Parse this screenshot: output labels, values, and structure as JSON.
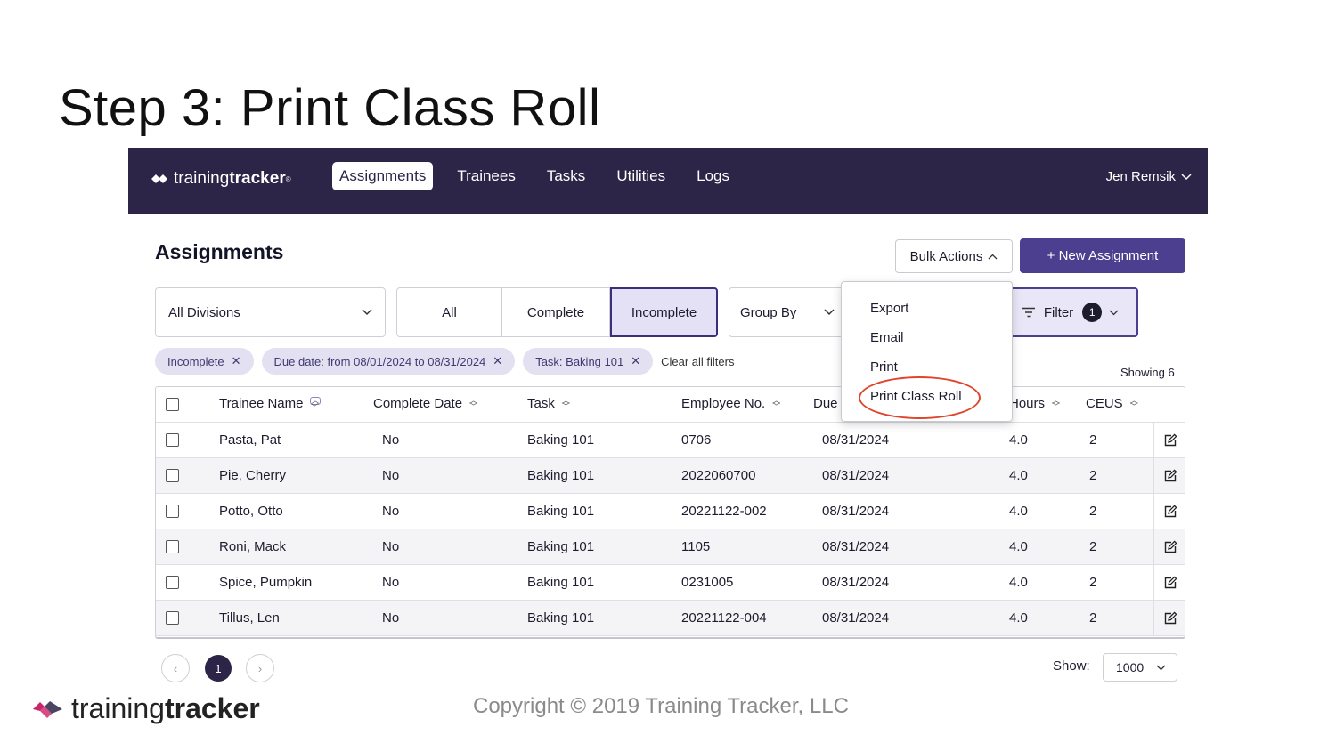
{
  "slide": {
    "title": "Step 3: Print Class Roll"
  },
  "brand": {
    "light": "training",
    "bold": "tracker",
    "mark": "®"
  },
  "nav": {
    "links": [
      "Assignments",
      "Trainees",
      "Tasks",
      "Utilities",
      "Logs"
    ],
    "active": "Assignments",
    "user": "Jen Remsik"
  },
  "page": {
    "heading": "Assignments",
    "bulk_actions": "Bulk Actions",
    "new_assignment": "+ New Assignment"
  },
  "filters": {
    "division": "All Divisions",
    "status_tabs": [
      "All",
      "Complete",
      "Incomplete"
    ],
    "status_selected": "Incomplete",
    "group_by": "Group By",
    "filter_label": "Filter",
    "filter_count": "1",
    "chips": [
      "Incomplete",
      "Due date: from 08/01/2024 to 08/31/2024",
      "Task: Baking 101"
    ],
    "clear_all": "Clear all filters",
    "showing": "Showing 6"
  },
  "bulk_menu": {
    "items": [
      "Export",
      "Email",
      "Print",
      "Print Class Roll"
    ],
    "highlight": "Print Class Roll",
    "highlight_color": "#e0452c"
  },
  "table": {
    "headers": [
      "Trainee Name",
      "Complete Date",
      "Task",
      "Employee No.",
      "Due",
      "Hours",
      "CEUS"
    ],
    "rows": [
      [
        "Pasta, Pat",
        "No",
        "Baking 101",
        "0706",
        "08/31/2024",
        "4.0",
        "2"
      ],
      [
        "Pie, Cherry",
        "No",
        "Baking 101",
        "2022060700",
        "08/31/2024",
        "4.0",
        "2"
      ],
      [
        "Potto, Otto",
        "No",
        "Baking 101",
        "20221122-002",
        "08/31/2024",
        "4.0",
        "2"
      ],
      [
        "Roni, Mack",
        "No",
        "Baking 101",
        "1105",
        "08/31/2024",
        "4.0",
        "2"
      ],
      [
        "Spice, Pumpkin",
        "No",
        "Baking 101",
        "0231005",
        "08/31/2024",
        "4.0",
        "2"
      ],
      [
        "Tillus, Len",
        "No",
        "Baking 101",
        "20221122-004",
        "08/31/2024",
        "4.0",
        "2"
      ]
    ]
  },
  "pagination": {
    "current": "1",
    "show_label": "Show:",
    "show_value": "1000"
  },
  "footer": {
    "logo_light": "training",
    "logo_bold": "tracker",
    "copyright": "Copyright © 2019 Training Tracker, LLC"
  },
  "colors": {
    "nav_bg": "#2c2547",
    "accent": "#4c3f8f",
    "chip_bg": "#e3e0f2",
    "highlight": "#e0452c"
  }
}
